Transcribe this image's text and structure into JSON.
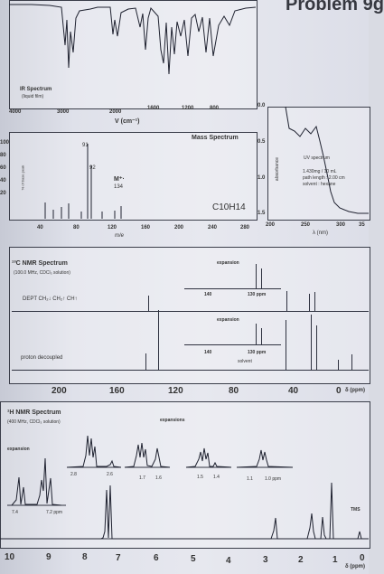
{
  "title": "Problem 9g",
  "ir": {
    "label": "IR Spectrum",
    "sub": "(liquid film)",
    "xticks": [
      "4000",
      "3000",
      "2000",
      "1600",
      "1200",
      "800"
    ],
    "xlabel": "V (cm⁻¹)"
  },
  "mass": {
    "label": "Mass Spectrum",
    "ylabel": "% of base peak",
    "peaks": [
      "91",
      "92",
      "M⁺·",
      "134"
    ],
    "formula": "C10H14",
    "xticks": [
      "40",
      "80",
      "120",
      "160",
      "200",
      "240",
      "280"
    ],
    "xlabel": "m/e",
    "yticks": [
      "100",
      "80",
      "60",
      "40",
      "20"
    ]
  },
  "uv": {
    "label": "UV spectrum",
    "lines": [
      "1.430mg / 10 mL",
      "path length : 2.00 cm",
      "solvent : hexane"
    ],
    "ylabel": "absorbance",
    "yticks": [
      "0.0",
      "0.5",
      "1.0",
      "1.5"
    ],
    "xticks": [
      "200",
      "250",
      "300",
      "35"
    ],
    "xlabel": "λ (nm)"
  },
  "c13": {
    "label": "¹³C NMR Spectrum",
    "sub": "(100.0 MHz, CDCl₃ solution)",
    "dept": "DEPT  CH₂↓ CH₂↑ CH↑",
    "expansion": "expansion",
    "exp_ticks": [
      "140",
      "130 ppm"
    ],
    "decoupled": "proton decoupled",
    "solvent": "solvent",
    "xticks": [
      "200",
      "160",
      "120",
      "80",
      "40",
      "0"
    ],
    "xlabel": "δ (ppm)"
  },
  "h1": {
    "label": "¹H NMR Spectrum",
    "sub": "(400 MHz, CDCl₃ solution)",
    "expansions": "expansions",
    "expansion": "expansion",
    "ticks_a": [
      "7.4",
      "7.2 ppm"
    ],
    "ticks_b": [
      "2.8",
      "2.6"
    ],
    "ticks_c": [
      "1.7",
      "1.6"
    ],
    "ticks_d": [
      "1.5",
      "1.4"
    ],
    "ticks_e": [
      "1.1",
      "1.0 ppm"
    ],
    "tms": "TMS",
    "xticks": [
      "10",
      "9",
      "8",
      "7",
      "6",
      "5",
      "4",
      "3",
      "2",
      "1",
      "0"
    ],
    "xlabel": "δ (ppm)"
  }
}
